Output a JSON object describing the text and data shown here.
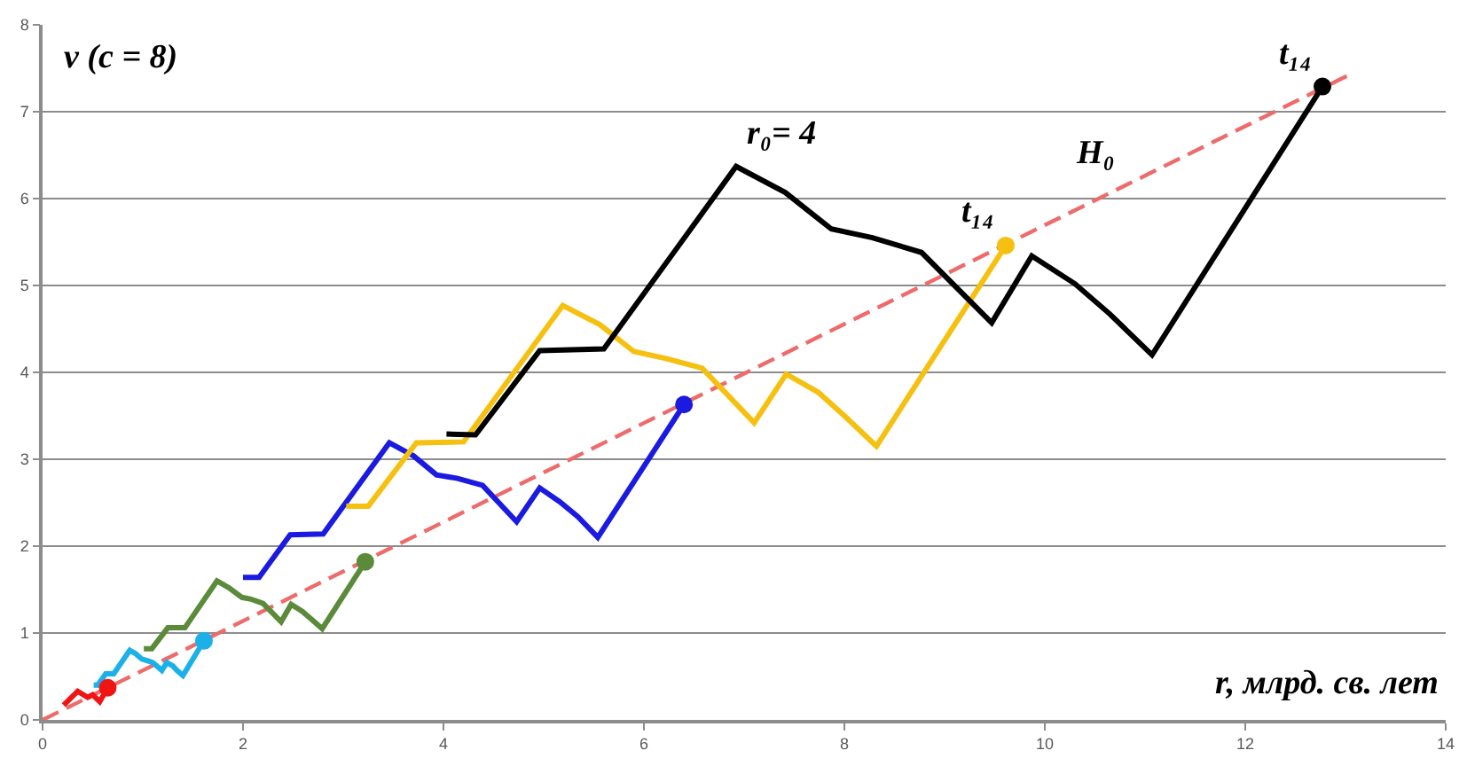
{
  "chart_data": {
    "type": "line",
    "xlabel": "r, млрд. св. лет",
    "ylabel": "v (c = 8)",
    "xlim": [
      0,
      14
    ],
    "ylim": [
      0,
      8
    ],
    "xticks": [
      0,
      2,
      4,
      6,
      8,
      10,
      12,
      14
    ],
    "yticks": [
      0,
      1,
      2,
      3,
      4,
      5,
      6,
      7,
      8
    ],
    "grid": "y",
    "line_style": "solid",
    "series": [
      {
        "type": "line",
        "line_style": "dashed",
        "color": "#ee6b6b",
        "x": [
          0,
          13.03
        ],
        "values": [
          0,
          7.42
        ]
      },
      {
        "color": "#f01414",
        "x": [
          0.21,
          0.35,
          0.45,
          0.5,
          0.57,
          0.65
        ],
        "values": [
          0.17,
          0.33,
          0.26,
          0.29,
          0.21,
          0.37
        ]
      },
      {
        "color": "#1cb0e8",
        "x": [
          0.51,
          0.55,
          0.63,
          0.71,
          0.87,
          0.93,
          0.99,
          1.05,
          1.1,
          1.19,
          1.24,
          1.3,
          1.34,
          1.4,
          1.61
        ],
        "values": [
          0.4,
          0.4,
          0.53,
          0.53,
          0.8,
          0.76,
          0.7,
          0.68,
          0.66,
          0.57,
          0.66,
          0.62,
          0.57,
          0.51,
          0.91
        ]
      },
      {
        "color": "#5a8a3a",
        "x": [
          1.01,
          1.09,
          1.25,
          1.42,
          1.74,
          1.86,
          1.99,
          2.08,
          2.2,
          2.38,
          2.48,
          2.59,
          2.67,
          2.79,
          3.22
        ],
        "values": [
          0.82,
          0.82,
          1.06,
          1.06,
          1.6,
          1.52,
          1.41,
          1.39,
          1.34,
          1.13,
          1.33,
          1.25,
          1.17,
          1.05,
          1.82
        ]
      },
      {
        "color": "#1a1ae0",
        "x": [
          2.0,
          2.16,
          2.47,
          2.8,
          3.46,
          3.7,
          3.93,
          4.14,
          4.39,
          4.73,
          4.96,
          5.16,
          5.34,
          5.54,
          6.4
        ],
        "values": [
          1.64,
          1.64,
          2.13,
          2.14,
          3.19,
          3.04,
          2.82,
          2.78,
          2.7,
          2.28,
          2.67,
          2.51,
          2.34,
          2.1,
          3.63
        ]
      },
      {
        "color": "#f5c010",
        "x": [
          3.03,
          3.25,
          3.73,
          4.2,
          5.19,
          5.56,
          5.9,
          6.22,
          6.58,
          7.1,
          7.42,
          7.74,
          8.0,
          8.32,
          9.61
        ],
        "values": [
          2.46,
          2.46,
          3.19,
          3.2,
          4.77,
          4.55,
          4.24,
          4.16,
          4.05,
          3.42,
          3.98,
          3.77,
          3.5,
          3.15,
          5.46
        ]
      },
      {
        "color": "#000000",
        "x": [
          4.03,
          4.32,
          4.96,
          5.6,
          6.92,
          7.41,
          7.87,
          8.28,
          8.77,
          9.47,
          9.87,
          10.3,
          10.65,
          11.07,
          12.77
        ],
        "values": [
          3.29,
          3.28,
          4.25,
          4.27,
          6.37,
          6.07,
          5.65,
          5.55,
          5.38,
          4.57,
          5.34,
          5.02,
          4.67,
          4.2,
          7.29
        ]
      },
      {
        "type": "scatter",
        "marker": "circle",
        "x": [
          0.65,
          1.61,
          3.22,
          6.4,
          9.61,
          12.77
        ],
        "values": [
          0.37,
          0.91,
          1.82,
          3.63,
          5.46,
          7.29
        ],
        "colors": [
          "#f01414",
          "#1cb0e8",
          "#5a8a3a",
          "#1a1ae0",
          "#f5c010",
          "#000000"
        ]
      }
    ],
    "annotations": [
      {
        "text": "r₀= 4",
        "x": 6.92,
        "y": 6.37
      },
      {
        "text": "t₁₄",
        "x": 9.61,
        "y": 5.46
      },
      {
        "text": "H₀",
        "x": 10.8,
        "y": 6.15
      },
      {
        "text": "t₁₄",
        "x": 12.77,
        "y": 7.29
      }
    ]
  }
}
